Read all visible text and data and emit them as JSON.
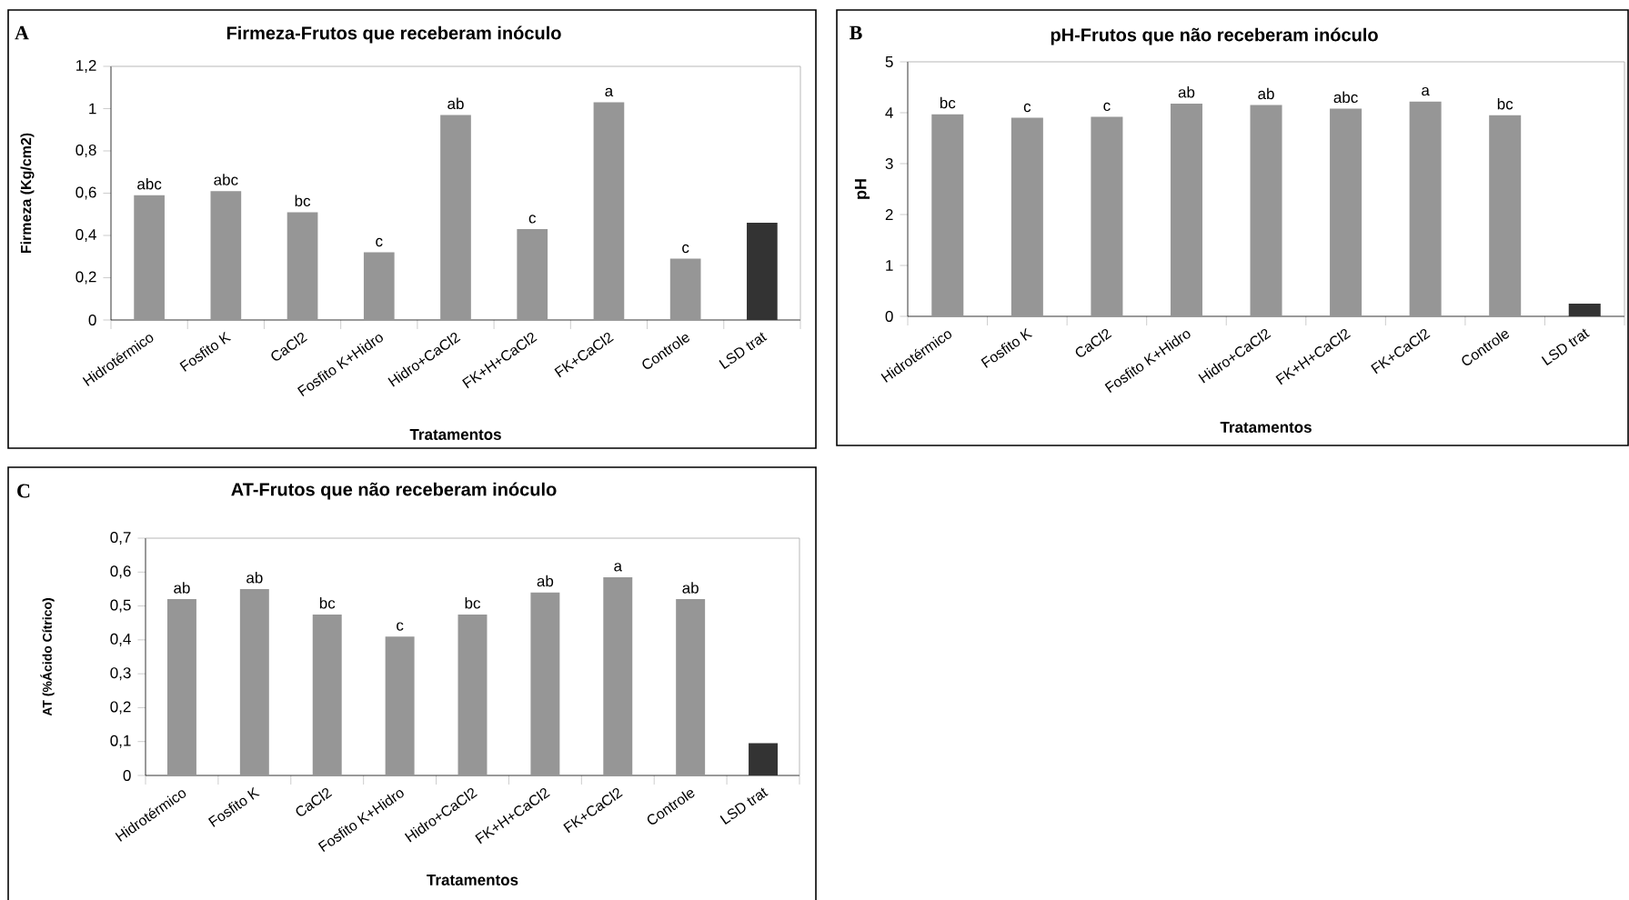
{
  "chart_data": [
    {
      "type": "bar",
      "title": "Firmeza-Frutos que receberam inóculo",
      "xlabel": "Tratamentos",
      "ylabel": "Firmeza (Kg/cm2)",
      "annotations": [
        "A"
      ],
      "categories": [
        "Hidrotérmico",
        "Fosfito K",
        "CaCl2",
        "Fosfito K+Hidro",
        "Hidro+CaCl2",
        "FK+H+CaCl2",
        "FK+CaCl2",
        "Controle",
        "LSD trat"
      ],
      "values": [
        0.59,
        0.61,
        0.51,
        0.32,
        0.97,
        0.43,
        1.03,
        0.29,
        0.46
      ],
      "colors": [
        "#969696",
        "#969696",
        "#969696",
        "#969696",
        "#969696",
        "#969696",
        "#969696",
        "#969696",
        "#333333"
      ],
      "value_labels": [
        "abc",
        "abc",
        "bc",
        "c",
        "ab",
        "c",
        "a",
        "c",
        null
      ],
      "ylim": [
        0,
        1.2
      ],
      "yticks": [
        0,
        {
          "value": 0.2,
          "label": "0,2"
        },
        {
          "value": 0.4,
          "label": "0,4"
        },
        {
          "value": 0.6,
          "label": "0,6"
        },
        {
          "value": 0.8,
          "label": "0,8"
        },
        1,
        {
          "value": 1.2,
          "label": "1,2"
        }
      ]
    },
    {
      "type": "bar",
      "title": "pH-Frutos que não receberam inóculo",
      "xlabel": "Tratamentos",
      "ylabel": "pH",
      "annotations": [
        "B"
      ],
      "categories": [
        "Hidrotérmico",
        "Fosfito K",
        "CaCl2",
        "Fosfito K+Hidro",
        "Hidro+CaCl2",
        "FK+H+CaCl2",
        "FK+CaCl2",
        "Controle",
        "LSD trat"
      ],
      "values": [
        3.97,
        3.9,
        3.92,
        4.18,
        4.15,
        4.08,
        4.22,
        3.95,
        0.25
      ],
      "colors": [
        "#969696",
        "#969696",
        "#969696",
        "#969696",
        "#969696",
        "#969696",
        "#969696",
        "#969696",
        "#333333"
      ],
      "value_labels": [
        "bc",
        "c",
        "c",
        "ab",
        "ab",
        "abc",
        "a",
        "bc",
        null
      ],
      "ylim": [
        0,
        5
      ],
      "yticks": [
        0,
        1,
        2,
        3,
        4,
        5
      ]
    },
    {
      "type": "bar",
      "title": "AT-Frutos que não receberam inóculo",
      "xlabel": "Tratamentos",
      "ylabel": "AT (%Ácido Cítrico)",
      "annotations": [
        "C"
      ],
      "categories": [
        "Hidrotérmico",
        "Fosfito K",
        "CaCl2",
        "Fosfito K+Hidro",
        "Hidro+CaCl2",
        "FK+H+CaCl2",
        "FK+CaCl2",
        "Controle",
        "LSD trat"
      ],
      "values": [
        0.52,
        0.55,
        0.475,
        0.41,
        0.475,
        0.54,
        0.585,
        0.52,
        0.095
      ],
      "colors": [
        "#969696",
        "#969696",
        "#969696",
        "#969696",
        "#969696",
        "#969696",
        "#969696",
        "#969696",
        "#333333"
      ],
      "value_labels": [
        "ab",
        "ab",
        "bc",
        "c",
        "bc",
        "ab",
        "a",
        "ab",
        null
      ],
      "ylim": [
        0,
        0.7
      ],
      "yticks": [
        0,
        {
          "value": 0.1,
          "label": "0,1"
        },
        {
          "value": 0.2,
          "label": "0,2"
        },
        {
          "value": 0.3,
          "label": "0,3"
        },
        {
          "value": 0.4,
          "label": "0,4"
        },
        {
          "value": 0.5,
          "label": "0,5"
        },
        {
          "value": 0.6,
          "label": "0,6"
        },
        {
          "value": 0.7,
          "label": "0,7"
        }
      ]
    }
  ]
}
